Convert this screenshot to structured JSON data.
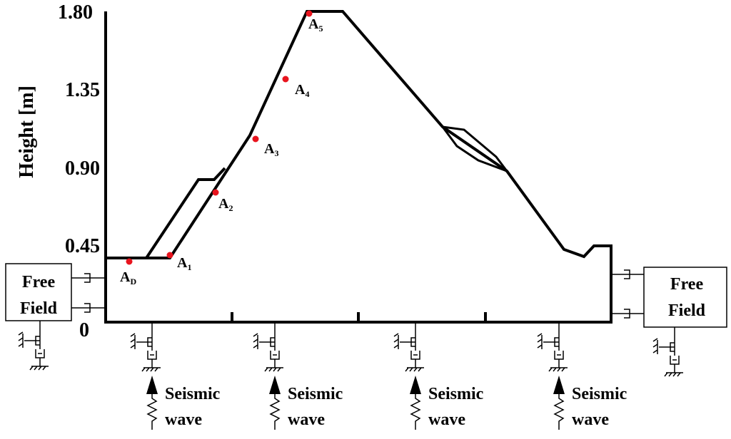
{
  "y_axis": {
    "label": "Height [m]",
    "ticks": [
      "1.80",
      "1.35",
      "0.90",
      "0.45",
      "0"
    ]
  },
  "points": [
    {
      "letter": "A",
      "sub": "D"
    },
    {
      "letter": "A",
      "sub": "1"
    },
    {
      "letter": "A",
      "sub": "2"
    },
    {
      "letter": "A",
      "sub": "3"
    },
    {
      "letter": "A",
      "sub": "4"
    },
    {
      "letter": "A",
      "sub": "5"
    }
  ],
  "free_field_left": [
    "Free",
    "Field"
  ],
  "free_field_right": [
    "Free",
    "Field"
  ],
  "seismic": [
    [
      "Seismic",
      "wave"
    ],
    [
      "Seismic",
      "wave"
    ],
    [
      "Seismic",
      "wave"
    ],
    [
      "Seismic",
      "wave"
    ]
  ]
}
